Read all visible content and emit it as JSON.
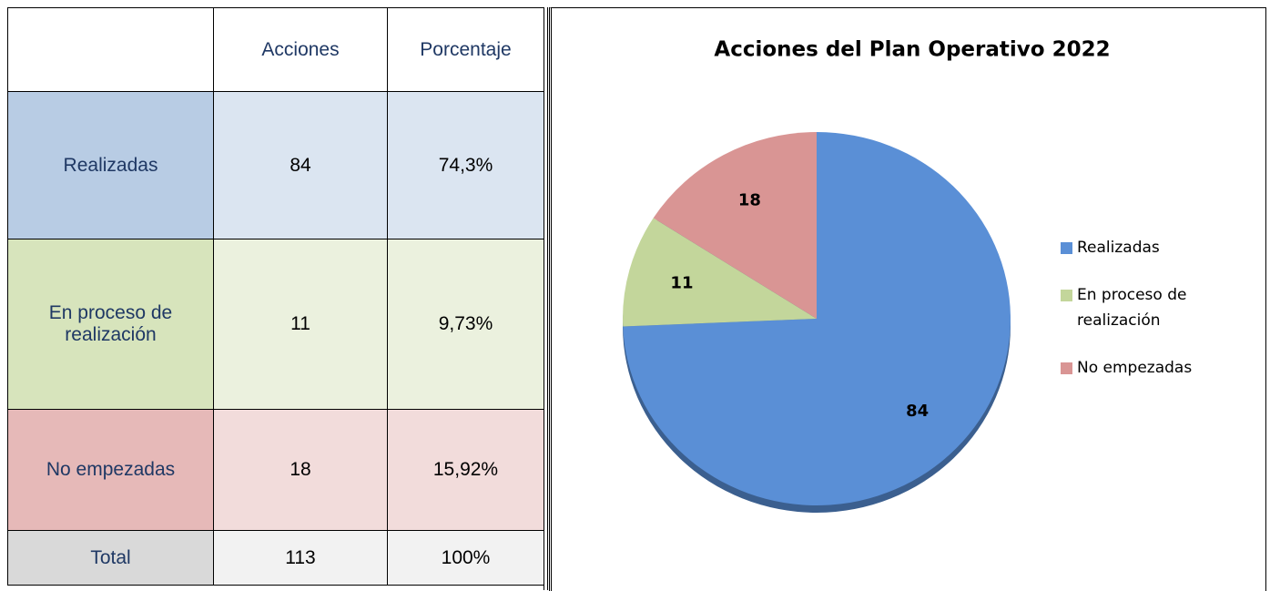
{
  "table": {
    "header": [
      "Acciones",
      "Porcentaje"
    ],
    "rows": [
      [
        "Realizadas",
        "84",
        "74,3%"
      ],
      [
        "En proceso de realización",
        "11",
        "9,73%"
      ],
      [
        "No empezadas",
        "18",
        "15,92%"
      ],
      [
        "Total",
        "113",
        "100%"
      ]
    ]
  },
  "chart_data": {
    "type": "pie",
    "title": "Acciones del Plan Operativo 2022",
    "categories": [
      "Realizadas",
      "En proceso de realización",
      "No empezadas"
    ],
    "values": [
      84,
      11,
      18
    ],
    "colors": [
      "#5a8fd6",
      "#c3d69b",
      "#d99594"
    ],
    "legend": "right"
  }
}
